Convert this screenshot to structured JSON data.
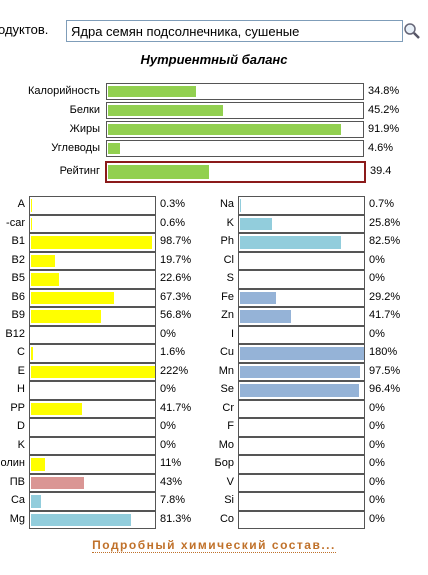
{
  "header": {
    "label": "одуктов.",
    "search_value": "Ядра семян подсолнечника, сушеные"
  },
  "title": "Нутриентный баланс",
  "main": {
    "color": "#92d050",
    "scale_max": 100,
    "rows": [
      {
        "label": "Калорийность",
        "value": 34.8,
        "value_label": "34.8%"
      },
      {
        "label": "Белки",
        "value": 45.2,
        "value_label": "45.2%"
      },
      {
        "label": "Жиры",
        "value": 91.9,
        "value_label": "91.9%"
      },
      {
        "label": "Углеводы",
        "value": 4.6,
        "value_label": "4.6%"
      }
    ],
    "rating": {
      "label": "Рейтинг",
      "value": 39.4,
      "border": "#8b1a1a"
    }
  },
  "left": [
    {
      "label": "A",
      "value": 0.3,
      "value_label": "0.3%",
      "color": "#ffff00"
    },
    {
      "label": "-car",
      "value": 0.6,
      "value_label": "0.6%",
      "color": "#ffff00"
    },
    {
      "label": "B1",
      "value": 98.7,
      "value_label": "98.7%",
      "color": "#ffff00"
    },
    {
      "label": "B2",
      "value": 19.7,
      "value_label": "19.7%",
      "color": "#ffff00"
    },
    {
      "label": "B5",
      "value": 22.6,
      "value_label": "22.6%",
      "color": "#ffff00"
    },
    {
      "label": "B6",
      "value": 67.3,
      "value_label": "67.3%",
      "color": "#ffff00"
    },
    {
      "label": "B9",
      "value": 56.8,
      "value_label": "56.8%",
      "color": "#ffff00"
    },
    {
      "label": "B12",
      "value": 0,
      "value_label": "0%",
      "color": "#ffff00"
    },
    {
      "label": "C",
      "value": 1.6,
      "value_label": "1.6%",
      "color": "#ffff00"
    },
    {
      "label": "E",
      "value": 222,
      "value_label": "222%",
      "color": "#ffff00"
    },
    {
      "label": "H",
      "value": 0,
      "value_label": "0%",
      "color": "#ffff00"
    },
    {
      "label": "PP",
      "value": 41.7,
      "value_label": "41.7%",
      "color": "#ffff00"
    },
    {
      "label": "D",
      "value": 0,
      "value_label": "0%",
      "color": "#ffff00"
    },
    {
      "label": "K",
      "value": 0,
      "value_label": "0%",
      "color": "#ffff00"
    },
    {
      "label": "олин",
      "value": 11,
      "value_label": "11%",
      "color": "#ffff00"
    },
    {
      "label": "ПВ",
      "value": 43,
      "value_label": "43%",
      "color": "#da9694"
    },
    {
      "label": "Ca",
      "value": 7.8,
      "value_label": "7.8%",
      "color": "#92cddc"
    },
    {
      "label": "Mg",
      "value": 81.3,
      "value_label": "81.3%",
      "color": "#92cddc"
    }
  ],
  "right": [
    {
      "label": "Na",
      "value": 0.7,
      "value_label": "0.7%",
      "color": "#92cddc"
    },
    {
      "label": "K",
      "value": 25.8,
      "value_label": "25.8%",
      "color": "#92cddc"
    },
    {
      "label": "Ph",
      "value": 82.5,
      "value_label": "82.5%",
      "color": "#92cddc"
    },
    {
      "label": "Cl",
      "value": 0,
      "value_label": "0%",
      "color": "#92cddc"
    },
    {
      "label": "S",
      "value": 0,
      "value_label": "0%",
      "color": "#92cddc"
    },
    {
      "label": "Fe",
      "value": 29.2,
      "value_label": "29.2%",
      "color": "#95b3d7"
    },
    {
      "label": "Zn",
      "value": 41.7,
      "value_label": "41.7%",
      "color": "#95b3d7"
    },
    {
      "label": "I",
      "value": 0,
      "value_label": "0%",
      "color": "#95b3d7"
    },
    {
      "label": "Cu",
      "value": 180,
      "value_label": "180%",
      "color": "#95b3d7"
    },
    {
      "label": "Mn",
      "value": 97.5,
      "value_label": "97.5%",
      "color": "#95b3d7"
    },
    {
      "label": "Se",
      "value": 96.4,
      "value_label": "96.4%",
      "color": "#95b3d7"
    },
    {
      "label": "Cr",
      "value": 0,
      "value_label": "0%",
      "color": "#95b3d7"
    },
    {
      "label": "F",
      "value": 0,
      "value_label": "0%",
      "color": "#95b3d7"
    },
    {
      "label": "Mo",
      "value": 0,
      "value_label": "0%",
      "color": "#95b3d7"
    },
    {
      "label": "Бор",
      "value": 0,
      "value_label": "0%",
      "color": "#95b3d7"
    },
    {
      "label": "V",
      "value": 0,
      "value_label": "0%",
      "color": "#95b3d7"
    },
    {
      "label": "Si",
      "value": 0,
      "value_label": "0%",
      "color": "#95b3d7"
    },
    {
      "label": "Co",
      "value": 0,
      "value_label": "0%",
      "color": "#95b3d7"
    }
  ],
  "link": "Подробный химический состав..."
}
